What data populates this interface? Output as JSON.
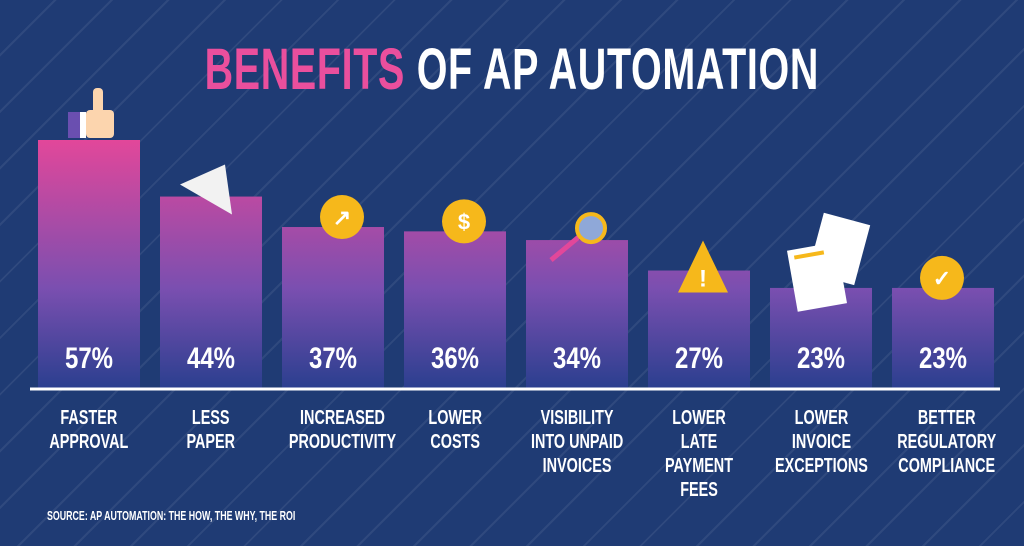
{
  "title": {
    "accent": "BENEFITS",
    "rest": "OF AP AUTOMATION",
    "accent_color": "#ea4f9d"
  },
  "chart_data": {
    "type": "bar",
    "categories": [
      "FASTER\nAPPROVAL",
      "LESS\nPAPER",
      "INCREASED\nPRODUCTIVITY",
      "LOWER\nCOSTS",
      "VISIBILITY\nINTO UNPAID\nINVOICES",
      "LOWER LATE\nPAYMENT\nFEES",
      "LOWER\nINVOICE\nEXCEPTIONS",
      "BETTER\nREGULATORY\nCOMPLIANCE"
    ],
    "values": [
      57,
      44,
      37,
      36,
      34,
      27,
      23,
      23
    ],
    "data_labels": [
      "57%",
      "44%",
      "37%",
      "36%",
      "34%",
      "27%",
      "23%",
      "23%"
    ],
    "icons": [
      "thumbs-up-icon",
      "paper-plane-icon",
      "arrow-up-right-icon",
      "dollar-coin-icon",
      "magnifier-icon",
      "warning-icon",
      "invoice-icon",
      "checkmark-icon"
    ],
    "bar_gradient": [
      "#e2479a",
      "#7a4fb0",
      "#2b3f8f"
    ],
    "ylim": [
      0,
      57
    ],
    "grid": false,
    "title": "BENEFITS OF AP AUTOMATION"
  },
  "source": "SOURCE: AP AUTOMATION: THE HOW, THE WHY, THE ROI"
}
